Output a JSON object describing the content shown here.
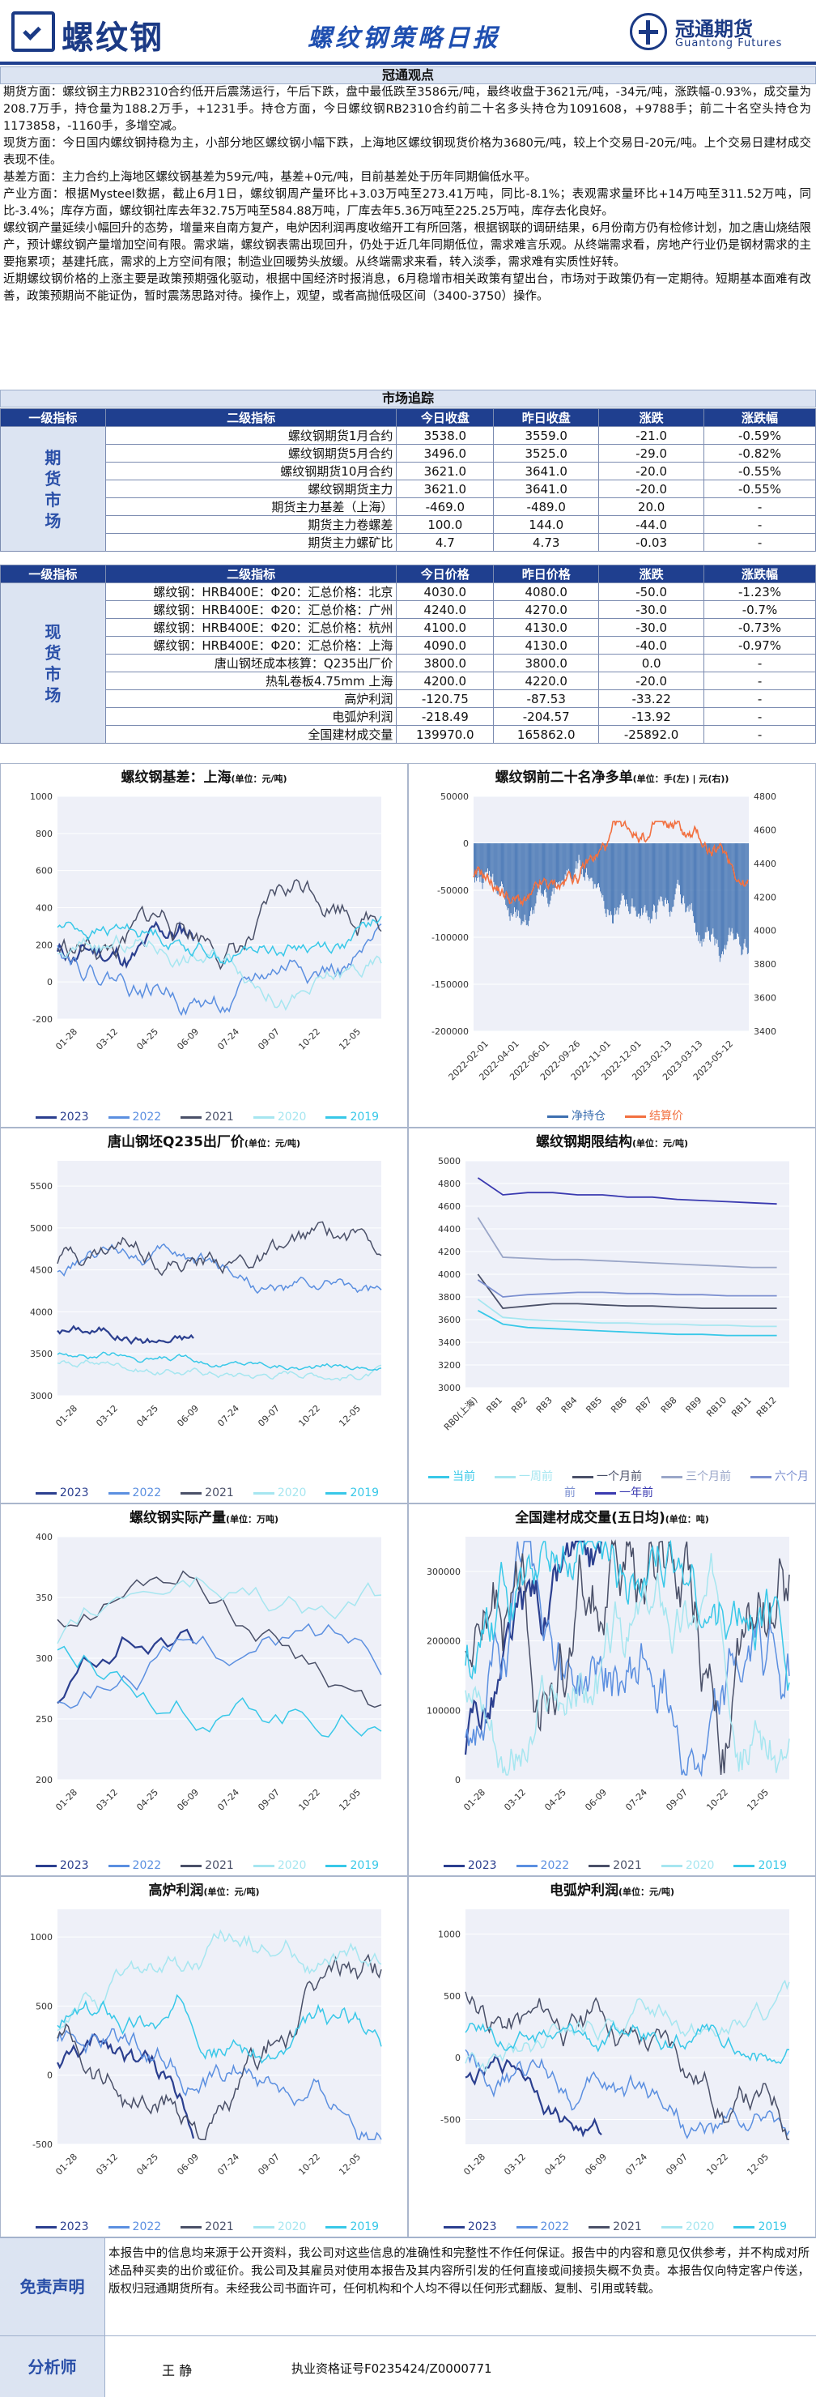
{
  "header": {
    "logo_text": "螺纹钢",
    "title": "螺纹钢策略日报",
    "brand_cn": "冠通期货",
    "brand_en": "Guantong Futures"
  },
  "view": {
    "title": "冠通观点",
    "paragraphs": [
      "期货方面：螺纹钢主力RB2310合约低开后震荡运行，午后下跌，盘中最低跌至3586元/吨，最终收盘于3621元/吨，-34元/吨，涨跌幅-0.93%，成交量为208.7万手，持仓量为188.2万手，+1231手。持仓方面，今日螺纹钢RB2310合约前二十名多头持仓为1091608，+9788手；前二十名空头持仓为1173858，-1160手，多增空减。",
      "现货方面：今日国内螺纹钢持稳为主，小部分地区螺纹钢小幅下跌，上海地区螺纹钢现货价格为3680元/吨，较上个交易日-20元/吨。上个交易日建材成交表现不佳。",
      "基差方面：主力合约上海地区螺纹钢基差为59元/吨，基差+0元/吨，目前基差处于历年同期偏低水平。",
      "产业方面：根据Mysteel数据，截止6月1日，螺纹钢周产量环比+3.03万吨至273.41万吨，同比-8.1%；表观需求量环比+14万吨至311.52万吨，同比-3.4%；库存方面，螺纹钢社库去年32.75万吨至584.88万吨，厂库去年5.36万吨至225.25万吨，库存去化良好。",
      "螺纹钢产量延续小幅回升的态势，增量来自南方复产，电炉因利润再度收缩开工有所回落，根据钢联的调研结果，6月份南方仍有检修计划，加之唐山烧结限产，预计螺纹钢产量增加空间有限。需求端，螺纹钢表需出现回升，仍处于近几年同期低位，需求难言乐观。从终端需求看，房地产行业仍是钢材需求的主要拖累项；基建托底，需求的上方空间有限；制造业回暖势头放缓。从终端需求来看，转入淡季，需求难有实质性好转。",
      "近期螺纹钢价格的上涨主要是政策预期强化驱动，根据中国经济时报消息，6月稳增市相关政策有望出台，市场对于政策仍有一定期待。短期基本面难有改善，政策预期尚不能证伪，暂时震荡思路对待。操作上，观望，或者高抛低吸区间（3400-3750）操作。"
    ]
  },
  "market": {
    "title": "市场追踪",
    "futures_header": [
      "一级指标",
      "二级指标",
      "今日收盘",
      "昨日收盘",
      "涨跌",
      "涨跌幅"
    ],
    "futures_group": "期货市场",
    "futures_rows": [
      [
        "螺纹钢期货1月合约",
        "3538.0",
        "3559.0",
        "-21.0",
        "-0.59%"
      ],
      [
        "螺纹钢期货5月合约",
        "3496.0",
        "3525.0",
        "-29.0",
        "-0.82%"
      ],
      [
        "螺纹钢期货10月合约",
        "3621.0",
        "3641.0",
        "-20.0",
        "-0.55%"
      ],
      [
        "螺纹钢期货主力",
        "3621.0",
        "3641.0",
        "-20.0",
        "-0.55%"
      ],
      [
        "期货主力基差（上海）",
        "-469.0",
        "-489.0",
        "20.0",
        "-"
      ],
      [
        "期货主力卷螺差",
        "100.0",
        "144.0",
        "-44.0",
        "-"
      ],
      [
        "期货主力螺矿比",
        "4.7",
        "4.73",
        "-0.03",
        "-"
      ]
    ],
    "spot_header": [
      "一级指标",
      "二级指标",
      "今日价格",
      "昨日价格",
      "涨跌",
      "涨跌幅"
    ],
    "spot_group": "现货市场",
    "spot_rows": [
      [
        "螺纹钢：HRB400E：Φ20：汇总价格：北京",
        "4030.0",
        "4080.0",
        "-50.0",
        "-1.23%"
      ],
      [
        "螺纹钢：HRB400E：Φ20：汇总价格：广州",
        "4240.0",
        "4270.0",
        "-30.0",
        "-0.7%"
      ],
      [
        "螺纹钢：HRB400E：Φ20：汇总价格：杭州",
        "4100.0",
        "4130.0",
        "-30.0",
        "-0.73%"
      ],
      [
        "螺纹钢：HRB400E：Φ20：汇总价格：上海",
        "4090.0",
        "4130.0",
        "-40.0",
        "-0.97%"
      ],
      [
        "唐山钢坯成本核算：Q235出厂价",
        "3800.0",
        "3800.0",
        "0.0",
        "-"
      ],
      [
        "热轧卷板4.75mm 上海",
        "4200.0",
        "4220.0",
        "-20.0",
        "-"
      ],
      [
        "高炉利润",
        "-120.75",
        "-87.53",
        "-33.22",
        "-"
      ],
      [
        "电弧炉利润",
        "-218.49",
        "-204.57",
        "-13.92",
        "-"
      ],
      [
        "全国建材成交量",
        "139970.0",
        "165862.0",
        "-25892.0",
        "-"
      ]
    ]
  },
  "colors": {
    "y2023": "#2b3f8f",
    "y2022": "#5b8fe0",
    "y2021": "#4a5068",
    "y2020": "#a6e6f0",
    "y2019": "#38c8e8",
    "net_long": "#3d6fb0",
    "settle": "#f27040"
  },
  "chart_data": [
    {
      "type": "line",
      "title": "螺纹钢基差：上海",
      "unit": "(单位：元/吨)",
      "x_ticks": [
        "01-28",
        "03-12",
        "04-25",
        "06-09",
        "07-24",
        "09-07",
        "10-22",
        "12-05"
      ],
      "ylim": [
        -200,
        1000
      ],
      "y_ticks": [
        "-200",
        "0",
        "200",
        "400",
        "600",
        "800",
        "1000"
      ],
      "legend": [
        "2023",
        "2022",
        "2021",
        "2020",
        "2019"
      ]
    },
    {
      "type": "bar",
      "title": "螺纹钢前二十名净多单",
      "unit": "(单位：手(左) | 元(右))",
      "x_ticks": [
        "2022-02-01",
        "2022-04-01",
        "2022-06-01",
        "2022-09-26",
        "2022-11-01",
        "2022-12-01",
        "2023-02-13",
        "2023-03-13",
        "2023-05-12"
      ],
      "ylim_left": [
        -200000,
        50000
      ],
      "y_ticks_left": [
        "50000",
        "0",
        "-50000",
        "-100000",
        "-150000",
        "-200000"
      ],
      "ylim_right": [
        3400,
        4800
      ],
      "y_ticks_right": [
        "4800",
        "4600",
        "4400",
        "4200",
        "4000",
        "3800",
        "3600",
        "3400"
      ],
      "legend": [
        "净持仓",
        "结算价"
      ]
    },
    {
      "type": "line",
      "title": "唐山钢坯Q235出厂价",
      "unit": "(单位：元/吨)",
      "x_ticks": [
        "01-28",
        "03-12",
        "04-25",
        "06-09",
        "07-24",
        "09-07",
        "10-22",
        "12-05"
      ],
      "ylim": [
        3000,
        5800
      ],
      "y_ticks": [
        "3000",
        "3500",
        "4000",
        "4500",
        "5000",
        "5500"
      ],
      "legend": [
        "2023",
        "2022",
        "2021",
        "2020",
        "2019"
      ]
    },
    {
      "type": "line",
      "title": "螺纹钢期限结构",
      "unit": "(单位：元/吨)",
      "x_ticks": [
        "RB0(上海)",
        "RB1",
        "RB2",
        "RB3",
        "RB4",
        "RB5",
        "RB6",
        "RB7",
        "RB8",
        "RB9",
        "RB10",
        "RB11",
        "RB12"
      ],
      "ylim": [
        3000,
        5000
      ],
      "y_ticks": [
        "5000",
        "4800",
        "4600",
        "4400",
        "4200",
        "4000",
        "3800",
        "3600",
        "3400",
        "3200",
        "3000"
      ],
      "legend": [
        "当前",
        "一周前",
        "一个月前",
        "三个月前",
        "六个月前",
        "一年前"
      ]
    },
    {
      "type": "line",
      "title": "螺纹钢实际产量",
      "unit": "(单位：万吨)",
      "x_ticks": [
        "01-28",
        "03-12",
        "04-25",
        "06-09",
        "07-24",
        "09-07",
        "10-22",
        "12-05"
      ],
      "ylim": [
        200,
        400
      ],
      "y_ticks": [
        "200",
        "250",
        "300",
        "350",
        "400"
      ],
      "legend": [
        "2023",
        "2022",
        "2021",
        "2020",
        "2019"
      ]
    },
    {
      "type": "line",
      "title": "全国建材成交量(五日均)",
      "unit": "(单位：吨)",
      "x_ticks": [
        "01-28",
        "03-12",
        "04-25",
        "06-09",
        "07-24",
        "09-07",
        "10-22",
        "12-05"
      ],
      "ylim": [
        0,
        350000
      ],
      "y_ticks": [
        "0",
        "100000",
        "200000",
        "300000"
      ],
      "legend": [
        "2023",
        "2022",
        "2021",
        "2020",
        "2019"
      ]
    },
    {
      "type": "line",
      "title": "高炉利润",
      "unit": "(单位：元/吨)",
      "x_ticks": [
        "01-28",
        "03-12",
        "04-25",
        "06-09",
        "07-24",
        "09-07",
        "10-22",
        "12-05"
      ],
      "ylim": [
        -500,
        1200
      ],
      "y_ticks": [
        "-500",
        "0",
        "500",
        "1000"
      ],
      "legend": [
        "2023",
        "2022",
        "2021",
        "2020",
        "2019"
      ]
    },
    {
      "type": "line",
      "title": "电弧炉利润",
      "unit": "(单位：元/吨)",
      "x_ticks": [
        "01-28",
        "03-12",
        "04-25",
        "06-09",
        "07-24",
        "09-07",
        "10-22",
        "12-05"
      ],
      "ylim": [
        -700,
        1200
      ],
      "y_ticks": [
        "-500",
        "0",
        "500",
        "1000"
      ],
      "legend": [
        "2023",
        "2022",
        "2021",
        "2020",
        "2019"
      ]
    }
  ],
  "footer": {
    "disclaimer_label": "免责声明",
    "disclaimer": "本报告中的信息均来源于公开资料，我公司对这些信息的准确性和完整性不作任何保证。报告中的内容和意见仅供参考，并不构成对所述品种买卖的出价或征价。我公司及其雇员对使用本报告及其内容所引发的任何直接或间接损失概不负责。本报告仅向特定客户传送，版权归冠通期货所有。未经我公司书面许可，任何机构和个人均不得以任何形式翻版、复制、引用或转载。",
    "analyst_label": "分析师",
    "analyst_name": "王  静",
    "analyst_cert": "执业资格证号F0235424/Z0000771"
  }
}
